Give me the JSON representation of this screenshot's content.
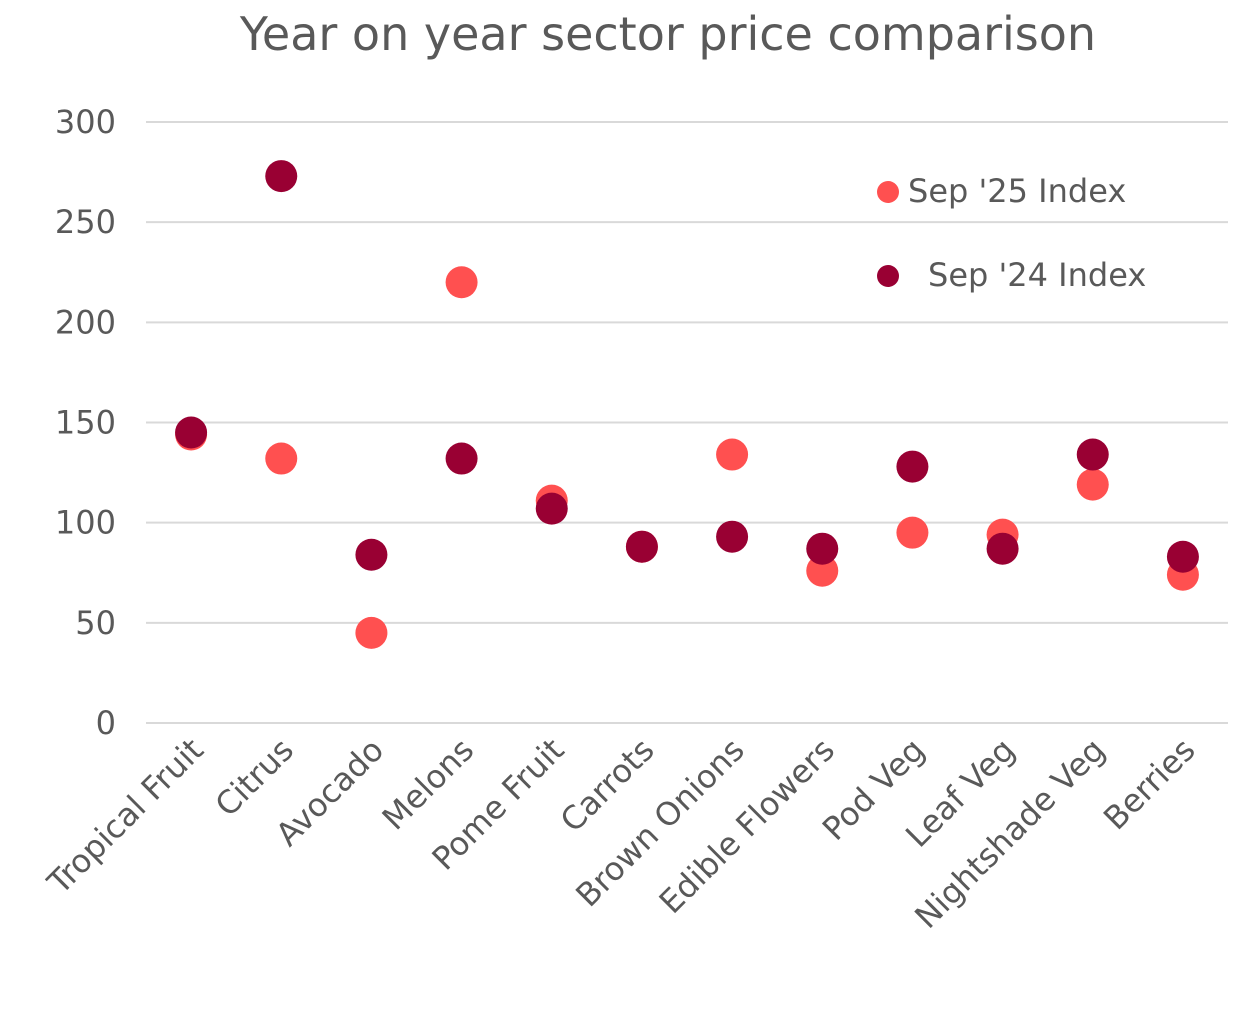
{
  "chart_data": {
    "type": "scatter",
    "title": "Year on year sector price comparison",
    "xlabel": "",
    "ylabel": "",
    "ylim": [
      0,
      300
    ],
    "yticks": [
      "0",
      "50",
      "100",
      "150",
      "200",
      "250",
      "300"
    ],
    "grid": true,
    "legend_position": "top-right",
    "categories": [
      "Tropical Fruit",
      "Citrus",
      "Avocado",
      "Melons",
      "Pome Fruit",
      "Carrots",
      "Brown Onions",
      "Edible Flowers",
      "Pod Veg",
      "Leaf Veg",
      "Nightshade Veg",
      "Berries"
    ],
    "series": [
      {
        "name": "Sep '25 Index",
        "color": "#ff5050",
        "values": [
          144,
          132,
          45,
          220,
          111,
          88,
          134,
          76,
          95,
          94,
          119,
          74
        ]
      },
      {
        "name": "Sep '24 Index",
        "color": "#990033",
        "values": [
          145,
          273,
          84,
          132,
          107,
          88,
          93,
          87,
          128,
          87,
          134,
          83
        ]
      }
    ]
  }
}
